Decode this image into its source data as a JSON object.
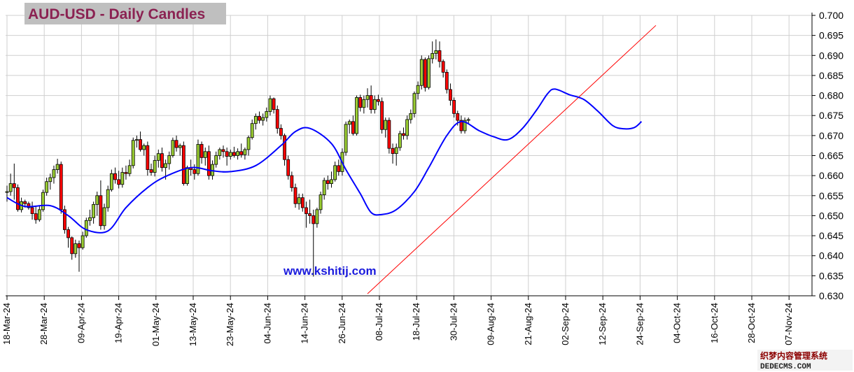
{
  "title": "AUD-USD - Daily Candles",
  "site_label": "www.kshitij.com",
  "watermark": {
    "line1": "织梦内容管理系统",
    "line2": "DEDECMS.COM"
  },
  "chart_data": {
    "type": "candlestick",
    "title": "AUD-USD - Daily Candles",
    "x_ticks": [
      "18-Mar-24",
      "28-Mar-24",
      "09-Apr-24",
      "19-Apr-24",
      "01-May-24",
      "13-May-24",
      "23-May-24",
      "04-Jun-24",
      "14-Jun-24",
      "26-Jun-24",
      "08-Jul-24",
      "18-Jul-24",
      "30-Jul-24",
      "09-Aug-24",
      "21-Aug-24",
      "02-Sep-24",
      "12-Sep-24",
      "24-Sep-24",
      "04-Oct-24",
      "16-Oct-24",
      "28-Oct-24",
      "07-Nov-24"
    ],
    "y_ticks": [
      "0.630",
      "0.635",
      "0.640",
      "0.645",
      "0.650",
      "0.655",
      "0.660",
      "0.665",
      "0.670",
      "0.675",
      "0.680",
      "0.685",
      "0.690",
      "0.695",
      "0.700"
    ],
    "ylim": [
      0.63,
      0.7
    ],
    "grid": true,
    "up_color": "#9acd32",
    "down_color": "#ff0000",
    "ma_color": "#0000ff",
    "trendline_color": "#ff0000",
    "candles": [
      {
        "o": 0.6558,
        "h": 0.6575,
        "l": 0.6535,
        "c": 0.656
      },
      {
        "o": 0.656,
        "h": 0.6605,
        "l": 0.655,
        "c": 0.658
      },
      {
        "o": 0.658,
        "h": 0.663,
        "l": 0.654,
        "c": 0.657
      },
      {
        "o": 0.657,
        "h": 0.6578,
        "l": 0.651,
        "c": 0.6515
      },
      {
        "o": 0.6515,
        "h": 0.6545,
        "l": 0.6508,
        "c": 0.6535
      },
      {
        "o": 0.6535,
        "h": 0.654,
        "l": 0.652,
        "c": 0.653
      },
      {
        "o": 0.653,
        "h": 0.6535,
        "l": 0.6515,
        "c": 0.652
      },
      {
        "o": 0.652,
        "h": 0.6535,
        "l": 0.649,
        "c": 0.6505
      },
      {
        "o": 0.6505,
        "h": 0.6525,
        "l": 0.648,
        "c": 0.649
      },
      {
        "o": 0.649,
        "h": 0.6525,
        "l": 0.6485,
        "c": 0.6515
      },
      {
        "o": 0.6515,
        "h": 0.6565,
        "l": 0.651,
        "c": 0.6558
      },
      {
        "o": 0.6558,
        "h": 0.6595,
        "l": 0.655,
        "c": 0.6585
      },
      {
        "o": 0.6585,
        "h": 0.6605,
        "l": 0.6565,
        "c": 0.6595
      },
      {
        "o": 0.6595,
        "h": 0.6625,
        "l": 0.658,
        "c": 0.6615
      },
      {
        "o": 0.6615,
        "h": 0.6642,
        "l": 0.6605,
        "c": 0.6628
      },
      {
        "o": 0.6628,
        "h": 0.6635,
        "l": 0.6505,
        "c": 0.6515
      },
      {
        "o": 0.6515,
        "h": 0.6525,
        "l": 0.6455,
        "c": 0.6465
      },
      {
        "o": 0.6465,
        "h": 0.6472,
        "l": 0.642,
        "c": 0.6445
      },
      {
        "o": 0.6445,
        "h": 0.6448,
        "l": 0.639,
        "c": 0.6405
      },
      {
        "o": 0.6405,
        "h": 0.644,
        "l": 0.6395,
        "c": 0.643
      },
      {
        "o": 0.643,
        "h": 0.6438,
        "l": 0.636,
        "c": 0.642
      },
      {
        "o": 0.642,
        "h": 0.646,
        "l": 0.6415,
        "c": 0.645
      },
      {
        "o": 0.645,
        "h": 0.6495,
        "l": 0.6445,
        "c": 0.6488
      },
      {
        "o": 0.6488,
        "h": 0.6515,
        "l": 0.6475,
        "c": 0.6495
      },
      {
        "o": 0.6495,
        "h": 0.6535,
        "l": 0.648,
        "c": 0.6528
      },
      {
        "o": 0.6528,
        "h": 0.656,
        "l": 0.65,
        "c": 0.655
      },
      {
        "o": 0.655,
        "h": 0.6588,
        "l": 0.6465,
        "c": 0.6475
      },
      {
        "o": 0.6475,
        "h": 0.653,
        "l": 0.6465,
        "c": 0.652
      },
      {
        "o": 0.652,
        "h": 0.6575,
        "l": 0.651,
        "c": 0.6565
      },
      {
        "o": 0.6565,
        "h": 0.6615,
        "l": 0.656,
        "c": 0.6605
      },
      {
        "o": 0.6605,
        "h": 0.662,
        "l": 0.658,
        "c": 0.659
      },
      {
        "o": 0.659,
        "h": 0.6612,
        "l": 0.6568,
        "c": 0.6578
      },
      {
        "o": 0.6578,
        "h": 0.662,
        "l": 0.657,
        "c": 0.6608
      },
      {
        "o": 0.6608,
        "h": 0.6625,
        "l": 0.659,
        "c": 0.6605
      },
      {
        "o": 0.6605,
        "h": 0.664,
        "l": 0.6598,
        "c": 0.6625
      },
      {
        "o": 0.6625,
        "h": 0.6695,
        "l": 0.6618,
        "c": 0.6688
      },
      {
        "o": 0.6688,
        "h": 0.67,
        "l": 0.667,
        "c": 0.669
      },
      {
        "o": 0.669,
        "h": 0.671,
        "l": 0.666,
        "c": 0.6665
      },
      {
        "o": 0.6665,
        "h": 0.668,
        "l": 0.665,
        "c": 0.6675
      },
      {
        "o": 0.6675,
        "h": 0.6685,
        "l": 0.66,
        "c": 0.6615
      },
      {
        "o": 0.6615,
        "h": 0.663,
        "l": 0.66,
        "c": 0.6608
      },
      {
        "o": 0.6608,
        "h": 0.665,
        "l": 0.6598,
        "c": 0.6638
      },
      {
        "o": 0.6638,
        "h": 0.6665,
        "l": 0.662,
        "c": 0.6655
      },
      {
        "o": 0.6655,
        "h": 0.667,
        "l": 0.661,
        "c": 0.662
      },
      {
        "o": 0.662,
        "h": 0.664,
        "l": 0.659,
        "c": 0.663
      },
      {
        "o": 0.663,
        "h": 0.666,
        "l": 0.6615,
        "c": 0.665
      },
      {
        "o": 0.665,
        "h": 0.6695,
        "l": 0.6645,
        "c": 0.6688
      },
      {
        "o": 0.6688,
        "h": 0.67,
        "l": 0.666,
        "c": 0.667
      },
      {
        "o": 0.667,
        "h": 0.668,
        "l": 0.665,
        "c": 0.6675
      },
      {
        "o": 0.6675,
        "h": 0.6685,
        "l": 0.6575,
        "c": 0.658
      },
      {
        "o": 0.658,
        "h": 0.6625,
        "l": 0.6575,
        "c": 0.662
      },
      {
        "o": 0.662,
        "h": 0.664,
        "l": 0.66,
        "c": 0.6615
      },
      {
        "o": 0.6615,
        "h": 0.6628,
        "l": 0.659,
        "c": 0.6605
      },
      {
        "o": 0.6605,
        "h": 0.669,
        "l": 0.66,
        "c": 0.6678
      },
      {
        "o": 0.6678,
        "h": 0.6685,
        "l": 0.663,
        "c": 0.6645
      },
      {
        "o": 0.6645,
        "h": 0.667,
        "l": 0.6625,
        "c": 0.666
      },
      {
        "o": 0.666,
        "h": 0.6675,
        "l": 0.659,
        "c": 0.66
      },
      {
        "o": 0.66,
        "h": 0.6638,
        "l": 0.659,
        "c": 0.6628
      },
      {
        "o": 0.6628,
        "h": 0.666,
        "l": 0.662,
        "c": 0.665
      },
      {
        "o": 0.665,
        "h": 0.667,
        "l": 0.664,
        "c": 0.6665
      },
      {
        "o": 0.6665,
        "h": 0.6675,
        "l": 0.6645,
        "c": 0.666
      },
      {
        "o": 0.666,
        "h": 0.667,
        "l": 0.6625,
        "c": 0.6648
      },
      {
        "o": 0.6648,
        "h": 0.6665,
        "l": 0.664,
        "c": 0.6658
      },
      {
        "o": 0.6658,
        "h": 0.6672,
        "l": 0.6645,
        "c": 0.665
      },
      {
        "o": 0.665,
        "h": 0.6668,
        "l": 0.664,
        "c": 0.666
      },
      {
        "o": 0.666,
        "h": 0.668,
        "l": 0.6645,
        "c": 0.6652
      },
      {
        "o": 0.6652,
        "h": 0.667,
        "l": 0.664,
        "c": 0.6665
      },
      {
        "o": 0.6665,
        "h": 0.67,
        "l": 0.665,
        "c": 0.6695
      },
      {
        "o": 0.6695,
        "h": 0.674,
        "l": 0.669,
        "c": 0.673
      },
      {
        "o": 0.673,
        "h": 0.6755,
        "l": 0.6715,
        "c": 0.6748
      },
      {
        "o": 0.6748,
        "h": 0.676,
        "l": 0.673,
        "c": 0.6738
      },
      {
        "o": 0.6738,
        "h": 0.6755,
        "l": 0.6725,
        "c": 0.6745
      },
      {
        "o": 0.6745,
        "h": 0.677,
        "l": 0.6735,
        "c": 0.676
      },
      {
        "o": 0.676,
        "h": 0.68,
        "l": 0.675,
        "c": 0.6792
      },
      {
        "o": 0.6792,
        "h": 0.6795,
        "l": 0.6755,
        "c": 0.6765
      },
      {
        "o": 0.6765,
        "h": 0.6775,
        "l": 0.6705,
        "c": 0.6718
      },
      {
        "o": 0.6718,
        "h": 0.6728,
        "l": 0.669,
        "c": 0.67
      },
      {
        "o": 0.67,
        "h": 0.6705,
        "l": 0.6625,
        "c": 0.664
      },
      {
        "o": 0.664,
        "h": 0.665,
        "l": 0.659,
        "c": 0.66
      },
      {
        "o": 0.66,
        "h": 0.661,
        "l": 0.656,
        "c": 0.657
      },
      {
        "o": 0.657,
        "h": 0.658,
        "l": 0.652,
        "c": 0.653
      },
      {
        "o": 0.653,
        "h": 0.6555,
        "l": 0.6515,
        "c": 0.6545
      },
      {
        "o": 0.6545,
        "h": 0.6555,
        "l": 0.651,
        "c": 0.652
      },
      {
        "o": 0.652,
        "h": 0.6535,
        "l": 0.647,
        "c": 0.6505
      },
      {
        "o": 0.6505,
        "h": 0.654,
        "l": 0.648,
        "c": 0.65
      },
      {
        "o": 0.65,
        "h": 0.6515,
        "l": 0.6348,
        "c": 0.648
      },
      {
        "o": 0.648,
        "h": 0.652,
        "l": 0.647,
        "c": 0.6515
      },
      {
        "o": 0.6515,
        "h": 0.656,
        "l": 0.6505,
        "c": 0.6552
      },
      {
        "o": 0.6552,
        "h": 0.6595,
        "l": 0.654,
        "c": 0.6588
      },
      {
        "o": 0.6588,
        "h": 0.66,
        "l": 0.6565,
        "c": 0.658
      },
      {
        "o": 0.658,
        "h": 0.661,
        "l": 0.657,
        "c": 0.659
      },
      {
        "o": 0.659,
        "h": 0.6635,
        "l": 0.6585,
        "c": 0.6625
      },
      {
        "o": 0.6625,
        "h": 0.664,
        "l": 0.66,
        "c": 0.661
      },
      {
        "o": 0.661,
        "h": 0.6668,
        "l": 0.66,
        "c": 0.6658
      },
      {
        "o": 0.6658,
        "h": 0.6735,
        "l": 0.665,
        "c": 0.6728
      },
      {
        "o": 0.6728,
        "h": 0.674,
        "l": 0.6705,
        "c": 0.6735
      },
      {
        "o": 0.6735,
        "h": 0.675,
        "l": 0.67,
        "c": 0.6705
      },
      {
        "o": 0.6705,
        "h": 0.68,
        "l": 0.67,
        "c": 0.6795
      },
      {
        "o": 0.6795,
        "h": 0.6802,
        "l": 0.676,
        "c": 0.677
      },
      {
        "o": 0.677,
        "h": 0.68,
        "l": 0.6755,
        "c": 0.679
      },
      {
        "o": 0.679,
        "h": 0.6818,
        "l": 0.677,
        "c": 0.68
      },
      {
        "o": 0.68,
        "h": 0.6825,
        "l": 0.6755,
        "c": 0.6765
      },
      {
        "o": 0.6765,
        "h": 0.68,
        "l": 0.6755,
        "c": 0.679
      },
      {
        "o": 0.679,
        "h": 0.6802,
        "l": 0.6775,
        "c": 0.6785
      },
      {
        "o": 0.6785,
        "h": 0.6795,
        "l": 0.6705,
        "c": 0.6715
      },
      {
        "o": 0.6715,
        "h": 0.6745,
        "l": 0.6695,
        "c": 0.6738
      },
      {
        "o": 0.6738,
        "h": 0.6745,
        "l": 0.6655,
        "c": 0.6668
      },
      {
        "o": 0.6668,
        "h": 0.668,
        "l": 0.663,
        "c": 0.6655
      },
      {
        "o": 0.6655,
        "h": 0.668,
        "l": 0.6625,
        "c": 0.667
      },
      {
        "o": 0.667,
        "h": 0.6712,
        "l": 0.6662,
        "c": 0.6705
      },
      {
        "o": 0.6705,
        "h": 0.672,
        "l": 0.669,
        "c": 0.67
      },
      {
        "o": 0.67,
        "h": 0.675,
        "l": 0.669,
        "c": 0.674
      },
      {
        "o": 0.674,
        "h": 0.6765,
        "l": 0.673,
        "c": 0.6755
      },
      {
        "o": 0.6755,
        "h": 0.681,
        "l": 0.6745,
        "c": 0.6805
      },
      {
        "o": 0.6805,
        "h": 0.6835,
        "l": 0.679,
        "c": 0.6825
      },
      {
        "o": 0.6825,
        "h": 0.69,
        "l": 0.6815,
        "c": 0.689
      },
      {
        "o": 0.689,
        "h": 0.6895,
        "l": 0.681,
        "c": 0.682
      },
      {
        "o": 0.682,
        "h": 0.69,
        "l": 0.6815,
        "c": 0.6892
      },
      {
        "o": 0.6892,
        "h": 0.6935,
        "l": 0.688,
        "c": 0.6905
      },
      {
        "o": 0.6905,
        "h": 0.694,
        "l": 0.689,
        "c": 0.6912
      },
      {
        "o": 0.6912,
        "h": 0.6935,
        "l": 0.687,
        "c": 0.6885
      },
      {
        "o": 0.6885,
        "h": 0.689,
        "l": 0.6845,
        "c": 0.6858
      },
      {
        "o": 0.6858,
        "h": 0.6865,
        "l": 0.6805,
        "c": 0.6815
      },
      {
        "o": 0.6815,
        "h": 0.683,
        "l": 0.6775,
        "c": 0.6788
      },
      {
        "o": 0.6788,
        "h": 0.6795,
        "l": 0.6745,
        "c": 0.6755
      },
      {
        "o": 0.6755,
        "h": 0.6762,
        "l": 0.6725,
        "c": 0.6738
      },
      {
        "o": 0.6738,
        "h": 0.675,
        "l": 0.6705,
        "c": 0.6712
      },
      {
        "o": 0.6712,
        "h": 0.6745,
        "l": 0.6705,
        "c": 0.6738
      },
      {
        "o": 0.6738,
        "h": 0.6745,
        "l": 0.673,
        "c": 0.674
      }
    ],
    "moving_average": [
      [
        0,
        0.6545
      ],
      [
        5,
        0.6523
      ],
      [
        12,
        0.6525
      ],
      [
        17,
        0.65
      ],
      [
        22,
        0.6465
      ],
      [
        28,
        0.6462
      ],
      [
        33,
        0.652
      ],
      [
        39,
        0.657
      ],
      [
        44,
        0.6598
      ],
      [
        51,
        0.662
      ],
      [
        57,
        0.6612
      ],
      [
        62,
        0.661
      ],
      [
        69,
        0.6625
      ],
      [
        76,
        0.6675
      ],
      [
        80,
        0.671
      ],
      [
        84,
        0.6718
      ],
      [
        90,
        0.668
      ],
      [
        94,
        0.6615
      ],
      [
        98,
        0.6555
      ],
      [
        101,
        0.6508
      ],
      [
        104,
        0.6503
      ],
      [
        108,
        0.6515
      ],
      [
        113,
        0.656
      ],
      [
        117,
        0.662
      ],
      [
        122,
        0.67
      ],
      [
        126,
        0.6735
      ],
      [
        131,
        0.6712
      ],
      [
        135,
        0.6697
      ],
      [
        139,
        0.669
      ],
      [
        143,
        0.6718
      ],
      [
        147,
        0.6765
      ],
      [
        150,
        0.6805
      ],
      [
        152,
        0.6816
      ],
      [
        156,
        0.6802
      ],
      [
        160,
        0.679
      ],
      [
        164,
        0.676
      ],
      [
        168,
        0.6725
      ],
      [
        171,
        0.6717
      ],
      [
        174,
        0.672
      ],
      [
        176,
        0.6735
      ]
    ],
    "trendline": {
      "from": [
        100,
        0.6305
      ],
      "to": [
        180,
        0.6975
      ]
    }
  }
}
